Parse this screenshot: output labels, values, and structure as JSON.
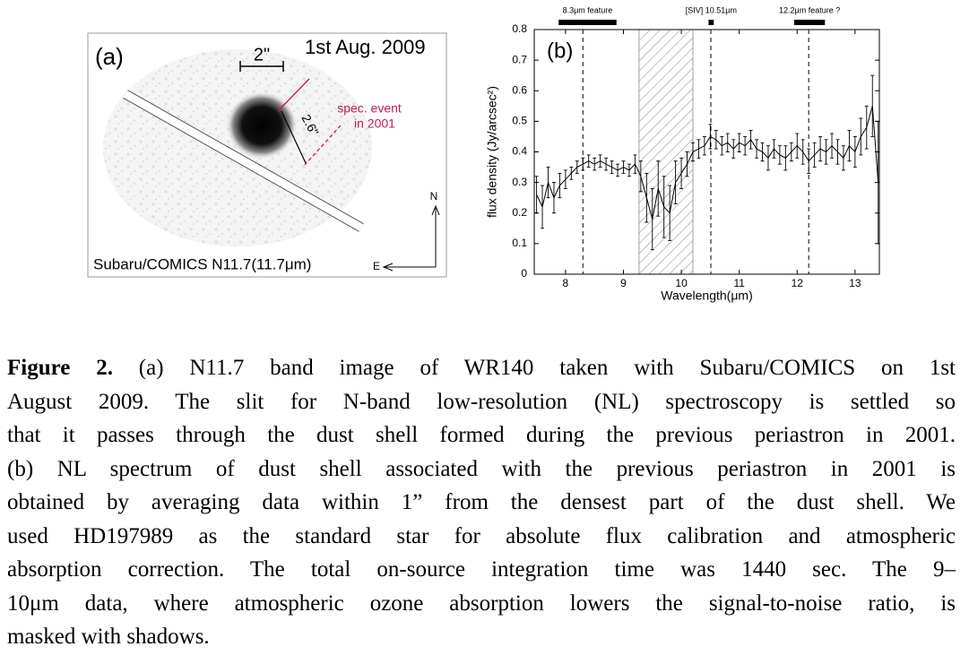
{
  "panel_a": {
    "label": "(a)",
    "date": "1st Aug. 2009",
    "scale": "2\"",
    "offset": "2.6\"",
    "event_lines": [
      "spec. event",
      "in 2001"
    ],
    "instrument": "Subaru/COMICS N11.7(11.7μm)",
    "north": "N",
    "east": "E"
  },
  "chart_data": {
    "type": "errorbar",
    "panel_label": "(b)",
    "x_label": "Wavelength(μm)",
    "y_label": "flux density (Jy/arcsec²)",
    "x": [
      7.5,
      7.6,
      7.7,
      7.8,
      7.9,
      8.0,
      8.1,
      8.2,
      8.3,
      8.4,
      8.5,
      8.6,
      8.7,
      8.8,
      8.9,
      9.0,
      9.1,
      9.2,
      9.3,
      9.4,
      9.5,
      9.6,
      9.7,
      9.8,
      9.9,
      10.0,
      10.1,
      10.2,
      10.3,
      10.4,
      10.5,
      10.6,
      10.7,
      10.8,
      10.9,
      11.0,
      11.1,
      11.2,
      11.3,
      11.4,
      11.5,
      11.6,
      11.7,
      11.8,
      11.9,
      12.0,
      12.1,
      12.2,
      12.3,
      12.4,
      12.5,
      12.6,
      12.7,
      12.8,
      12.9,
      13.0,
      13.1,
      13.2,
      13.3,
      13.4
    ],
    "values": [
      0.26,
      0.22,
      0.3,
      0.25,
      0.29,
      0.31,
      0.33,
      0.35,
      0.36,
      0.37,
      0.36,
      0.37,
      0.36,
      0.35,
      0.34,
      0.35,
      0.34,
      0.36,
      0.32,
      0.25,
      0.18,
      0.28,
      0.22,
      0.2,
      0.3,
      0.33,
      0.36,
      0.4,
      0.41,
      0.42,
      0.45,
      0.44,
      0.42,
      0.43,
      0.41,
      0.43,
      0.42,
      0.44,
      0.41,
      0.4,
      0.38,
      0.41,
      0.39,
      0.38,
      0.4,
      0.42,
      0.4,
      0.37,
      0.39,
      0.41,
      0.4,
      0.42,
      0.4,
      0.38,
      0.42,
      0.4,
      0.45,
      0.48,
      0.55,
      0.3
    ],
    "errors": [
      0.06,
      0.07,
      0.05,
      0.05,
      0.04,
      0.03,
      0.02,
      0.02,
      0.02,
      0.02,
      0.02,
      0.02,
      0.02,
      0.02,
      0.02,
      0.02,
      0.02,
      0.03,
      0.05,
      0.08,
      0.1,
      0.09,
      0.1,
      0.09,
      0.07,
      0.05,
      0.04,
      0.03,
      0.03,
      0.03,
      0.04,
      0.03,
      0.03,
      0.03,
      0.03,
      0.03,
      0.03,
      0.03,
      0.03,
      0.03,
      0.04,
      0.03,
      0.03,
      0.04,
      0.03,
      0.04,
      0.04,
      0.04,
      0.04,
      0.04,
      0.04,
      0.04,
      0.04,
      0.04,
      0.05,
      0.05,
      0.06,
      0.07,
      0.1,
      0.2
    ],
    "color": "#000000",
    "xlim": [
      7.46,
      13.42
    ],
    "ylim": [
      0,
      0.8
    ],
    "xticks": [
      8,
      9,
      10,
      11,
      12,
      13
    ],
    "yticks": [
      0,
      0.1,
      0.2,
      0.3,
      0.4,
      0.5,
      0.6,
      0.7,
      0.8
    ],
    "mask": [
      9.27,
      10.2
    ],
    "features": [
      {
        "label": "8.3μm feature",
        "x": 8.3,
        "span": [
          7.88,
          8.88
        ]
      },
      {
        "label": "[SIV] 10.51μm",
        "x": 10.51,
        "span": [
          10.47,
          10.56
        ]
      },
      {
        "label": "12.2μm feature ?",
        "x": 12.2,
        "span": [
          11.95,
          12.48
        ]
      }
    ]
  },
  "caption": {
    "label": "Figure 2.",
    "lines": [
      "(a) N11.7 band image of WR140 taken with Subaru/COMICS on 1st",
      "August 2009.  The slit for N-band low-resolution (NL) spectroscopy is settled so",
      "that it passes through the dust shell formed during the previous periastron in 2001.",
      "(b) NL spectrum of dust shell associated with the previous periastron in 2001 is",
      "obtained by averaging data within 1” from the densest part of the dust shell.  We",
      "used HD197989 as the standard star for absolute flux calibration and atmospheric",
      "absorption correction.  The total on-source integration time was 1440 sec.  The 9–",
      "10μm data, where atmospheric ozone absorption lowers the signal-to-noise ratio, is",
      "masked with shadows."
    ]
  }
}
